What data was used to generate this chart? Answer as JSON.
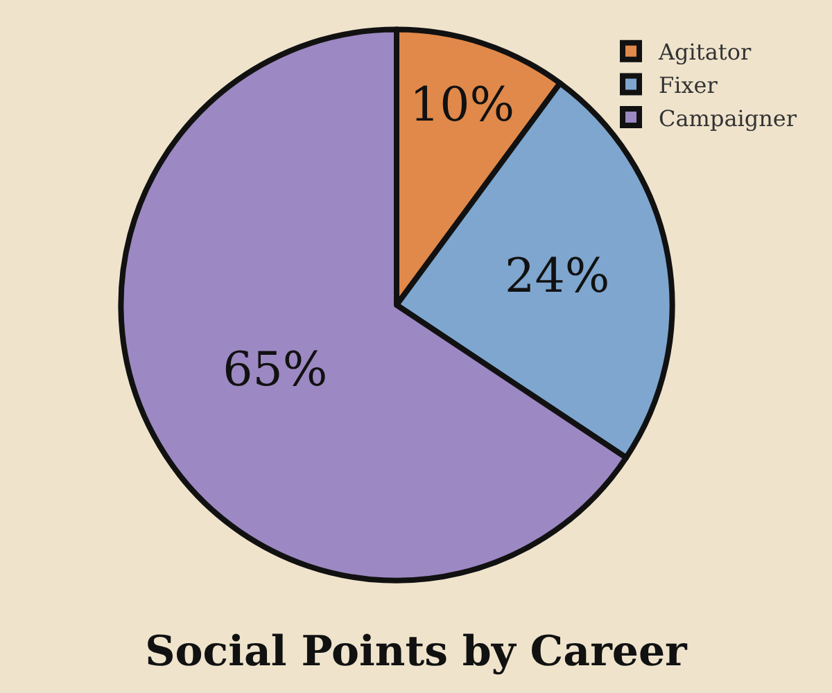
{
  "chart_data": {
    "type": "pie",
    "title": "Social Points by Career",
    "categories": [
      "Agitator",
      "Fixer",
      "Campaigner"
    ],
    "values": [
      10,
      24,
      65
    ],
    "value_labels": [
      "10%",
      "24%",
      "65%"
    ],
    "colors": [
      "#e0894a",
      "#7ea6cf",
      "#9c88c2"
    ],
    "legend": "top right"
  }
}
